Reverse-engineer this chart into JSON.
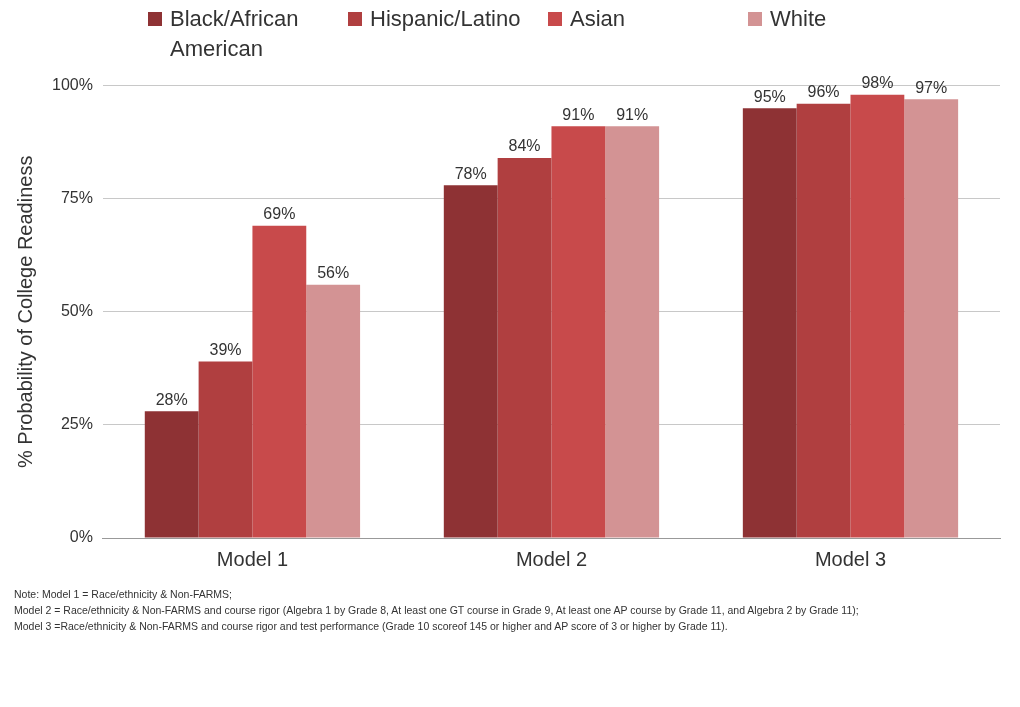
{
  "chart_data": {
    "type": "bar",
    "ylabel": "% Probability of College Readiness",
    "categories": [
      "Model 1",
      "Model 2",
      "Model 3"
    ],
    "series": [
      {
        "name": "Black/African American",
        "color": "#8e3234",
        "values": [
          28,
          78,
          95
        ],
        "value_labels": [
          "28%",
          "78%",
          "95%"
        ]
      },
      {
        "name": "Hispanic/Latino",
        "color": "#b03f40",
        "values": [
          39,
          84,
          96
        ],
        "value_labels": [
          "39%",
          "84%",
          "96%"
        ]
      },
      {
        "name": "Asian",
        "color": "#c84a4b",
        "values": [
          69,
          91,
          98
        ],
        "value_labels": [
          "69%",
          "91%",
          "98%"
        ]
      },
      {
        "name": "White",
        "color": "#d39394",
        "values": [
          56,
          91,
          97
        ],
        "value_labels": [
          "56%",
          "91%",
          "97%"
        ]
      }
    ],
    "ylim": [
      0,
      100
    ],
    "yticks": [
      {
        "value": 0,
        "label": "0%"
      },
      {
        "value": 25,
        "label": "25%"
      },
      {
        "value": 50,
        "label": "50%"
      },
      {
        "value": 75,
        "label": "75%"
      },
      {
        "value": 100,
        "label": "100%"
      }
    ],
    "grid": "y",
    "legend": "top",
    "annotations": [
      "Note: Model 1 = Race/ethnicity & Non-FARMS;",
      "Model 2 = Race/ethnicity & Non-FARMS and course rigor (Algebra 1 by Grade 8, At least one GT course in Grade 9, At least one AP course by Grade 11,  and Algebra 2 by Grade 11);",
      "Model 3 =Race/ethnicity & Non-FARMS and course rigor and test performance (Grade 10 scoreof 145 or higher and AP score of 3 or higher by Grade 11)."
    ]
  }
}
